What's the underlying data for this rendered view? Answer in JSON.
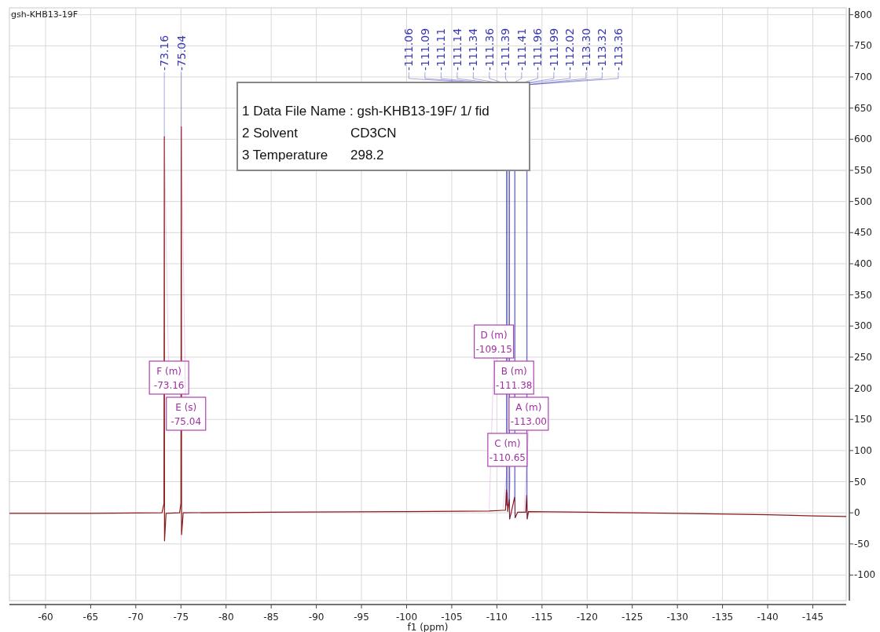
{
  "chart_data": {
    "type": "line",
    "title": "gsh-KHB13-19F",
    "xlabel": "f1 (ppm)",
    "xlim": [
      -56,
      -148.7
    ],
    "ylim": [
      -141,
      811
    ],
    "xticks": [
      -60,
      -65,
      -70,
      -75,
      -80,
      -85,
      -90,
      -95,
      -100,
      -105,
      -110,
      -115,
      -120,
      -125,
      -130,
      -135,
      -140,
      -145
    ],
    "yticks": [
      -100,
      -50,
      0,
      50,
      100,
      150,
      200,
      250,
      300,
      350,
      400,
      450,
      500,
      550,
      600,
      650,
      700,
      750,
      800
    ],
    "grid": true,
    "marker": "none",
    "line_style": "solid",
    "series": [
      {
        "color": "#8b1a1a",
        "x": [
          -56,
          -65,
          -72.9,
          -73.12,
          -73.16,
          -73.18,
          -73.35,
          -74.85,
          -75.0,
          -75.04,
          -75.07,
          -75.25,
          -85,
          -100,
          -109.15,
          -110.65,
          -110.95,
          -111.06,
          -111.09,
          -111.11,
          -111.14,
          -111.2,
          -111.34,
          -111.36,
          -111.38,
          -111.39,
          -111.41,
          -111.6,
          -111.96,
          -111.99,
          -112.02,
          -112.3,
          -113.0,
          -113.2,
          -113.3,
          -113.32,
          -113.36,
          -113.5,
          -120,
          -130,
          -140,
          -145,
          -148.7
        ],
        "values": [
          -1,
          -1,
          0,
          15,
          604,
          -45,
          -1,
          0,
          15,
          620,
          -35,
          0,
          1,
          2,
          3,
          4,
          4,
          37,
          30,
          12,
          33,
          2,
          18,
          20,
          21,
          22,
          -10,
          1,
          25,
          20,
          -8,
          1,
          1,
          1,
          28,
          22,
          -10,
          2,
          1,
          -1,
          -3,
          -5,
          -6
        ]
      }
    ],
    "annotations": [
      {
        "text": "-73.16",
        "x": -73.16,
        "y": 604
      },
      {
        "text": "-75.04",
        "x": -75.04,
        "y": 620
      },
      {
        "text": "-111.06",
        "x": -111.06,
        "y": 37
      },
      {
        "text": "-111.09",
        "x": -111.09,
        "y": 30
      },
      {
        "text": "-111.11",
        "x": -111.11,
        "y": 12
      },
      {
        "text": "-111.14",
        "x": -111.14,
        "y": 33
      },
      {
        "text": "-111.34",
        "x": -111.34,
        "y": 18
      },
      {
        "text": "-111.36",
        "x": -111.36,
        "y": 20
      },
      {
        "text": "-111.39",
        "x": -111.39,
        "y": 22
      },
      {
        "text": "-111.41",
        "x": -111.41,
        "y": -10
      },
      {
        "text": "-111.96",
        "x": -111.96,
        "y": 25
      },
      {
        "text": "-111.99",
        "x": -111.99,
        "y": 20
      },
      {
        "text": "-112.02",
        "x": -112.02,
        "y": -8
      },
      {
        "text": "-113.30",
        "x": -113.3,
        "y": 28
      },
      {
        "text": "-113.32",
        "x": -113.32,
        "y": 22
      },
      {
        "text": "-113.36",
        "x": -113.36,
        "y": -10
      },
      {
        "text": "F (m)\n-73.16",
        "x": -73.16,
        "y": 604
      },
      {
        "text": "E (s)\n-75.04",
        "x": -75.04,
        "y": 620
      },
      {
        "text": "D (m)\n-109.15",
        "x": -109.15,
        "y": 3
      },
      {
        "text": "B (m)\n-111.38",
        "x": -111.38,
        "y": 21
      },
      {
        "text": "A (m)\n-113.00",
        "x": -113.0,
        "y": 1
      },
      {
        "text": "C (m)\n-110.65",
        "x": -110.65,
        "y": 4
      },
      "1 Data File Name : gsh-KHB13-19F/ 1/ fid",
      "2 Solvent  CD3CN",
      "3 Temperature  298.2"
    ]
  }
}
